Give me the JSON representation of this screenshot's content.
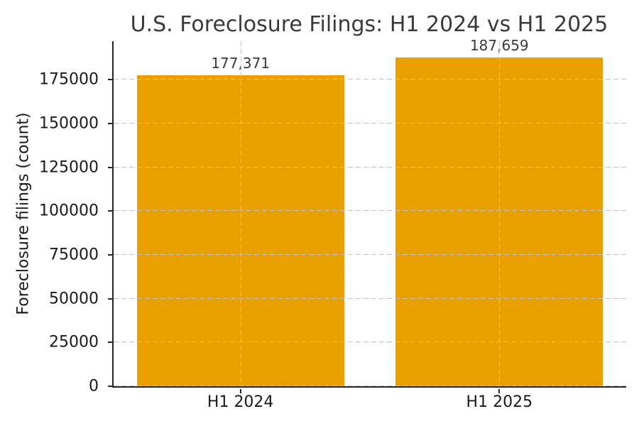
{
  "chart_data": {
    "type": "bar",
    "title": "U.S. Foreclosure Filings: H1 2024 vs H1 2025",
    "ylabel": "Foreclosure filings (count)",
    "xlabel": "",
    "categories": [
      "H1 2024",
      "H1 2025"
    ],
    "values": [
      177371,
      187659
    ],
    "bar_labels": [
      "177,371",
      "187,659"
    ],
    "yticks": [
      0,
      25000,
      50000,
      75000,
      100000,
      125000,
      150000,
      175000
    ],
    "ytick_labels": [
      "0",
      "25000",
      "50000",
      "75000",
      "100000",
      "125000",
      "150000",
      "175000"
    ],
    "ylim": [
      0,
      197000
    ],
    "grid": true,
    "grid_style": "dashed",
    "legend": "none",
    "colors": {
      "bar": "#E8A000",
      "grid": "#c3c3c3",
      "spine": "#262626",
      "text": "#1a1a1a",
      "title": "#3a3a3a",
      "background": "#ffffff"
    }
  }
}
